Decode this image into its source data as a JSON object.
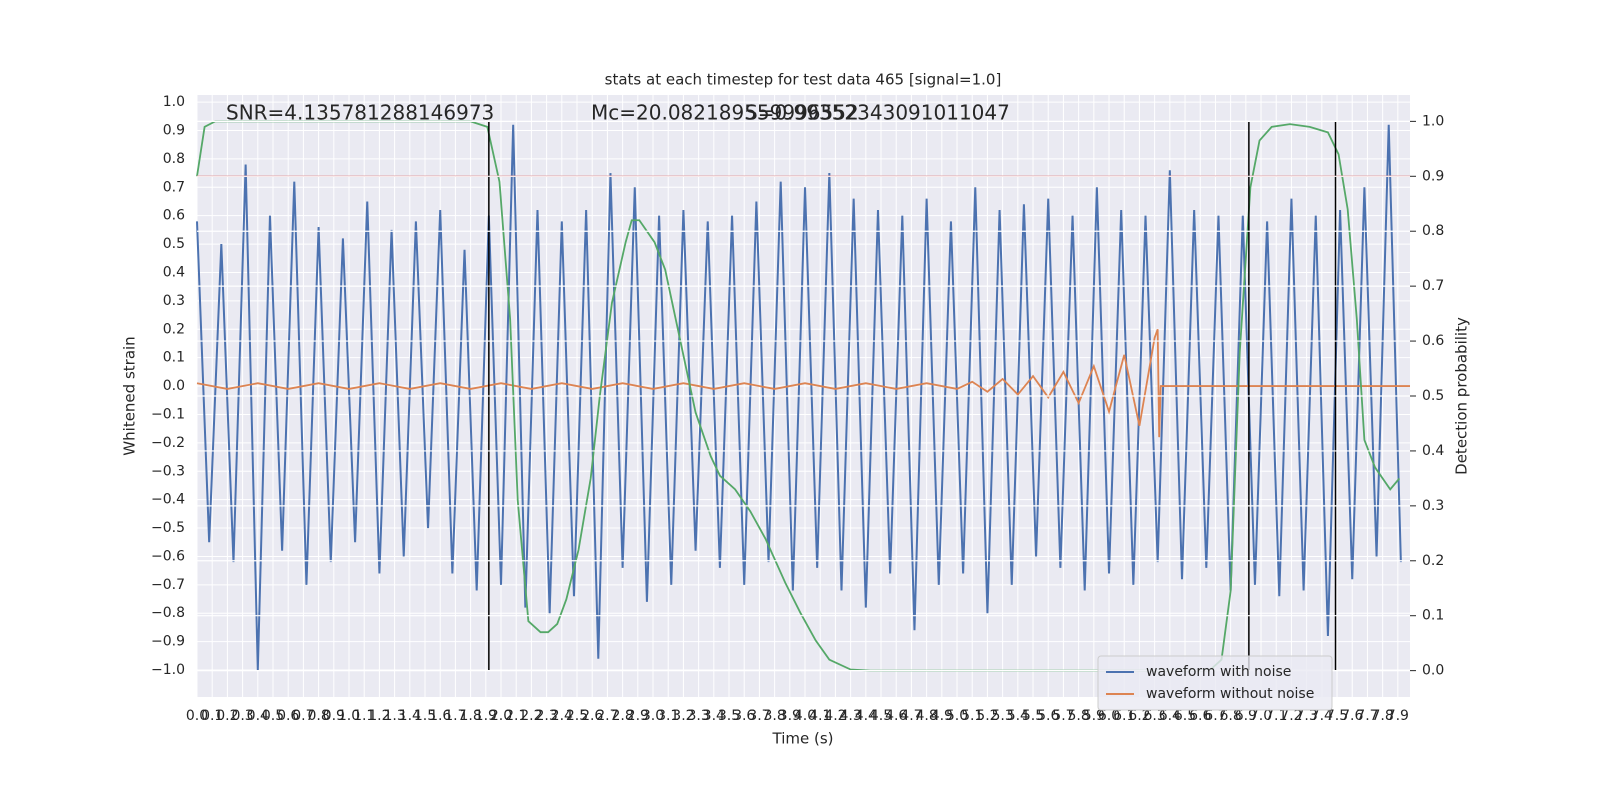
{
  "chart_data": {
    "type": "line",
    "title": "stats at each timestep for test data 465 [signal=1.0]",
    "xlabel": "Time (s)",
    "ylabel": "Whitened strain",
    "y2label": "Detection probability",
    "annotations": [
      "SNR=4.135781288146973",
      "Mc=20.082189559996552",
      "S=0.99352343091011047"
    ],
    "xlim": [
      0,
      7.98
    ],
    "ylim": [
      -1.095,
      1.025
    ],
    "y2lim": [
      -0.048,
      1.048
    ],
    "xticks": [
      {
        "value": 0,
        "label": "0.0"
      },
      0.1,
      0.2,
      0.3,
      0.4,
      0.5,
      0.6,
      0.7,
      0.8,
      0.9,
      {
        "value": 1,
        "label": "1.0"
      },
      1.1,
      1.2,
      1.3,
      1.4,
      1.5,
      1.6,
      1.7,
      1.8,
      1.9,
      {
        "value": 2,
        "label": "2.0"
      },
      2.1,
      2.2,
      2.3,
      2.4,
      2.5,
      2.6,
      2.7,
      2.8,
      2.9,
      {
        "value": 3,
        "label": "3.0"
      },
      3.1,
      3.2,
      3.3,
      3.4,
      3.5,
      3.6,
      3.7,
      3.8,
      3.9,
      {
        "value": 4,
        "label": "4.0"
      },
      4.1,
      4.2,
      4.3,
      4.4,
      4.5,
      4.6,
      4.7,
      4.8,
      4.9,
      {
        "value": 5,
        "label": "5.0"
      },
      5.1,
      5.2,
      5.3,
      5.4,
      5.5,
      5.6,
      5.7,
      5.8,
      5.9,
      {
        "value": 6,
        "label": "6.0"
      },
      6.1,
      6.2,
      6.3,
      6.4,
      6.5,
      6.6,
      6.7,
      6.8,
      6.9,
      {
        "value": 7,
        "label": "7.0"
      },
      7.1,
      7.2,
      7.3,
      7.4,
      7.5,
      7.6,
      7.7,
      7.8,
      7.9
    ],
    "yticks": [
      {
        "value": -1,
        "label": "−1.0"
      },
      {
        "value": -0.9,
        "label": "−0.9"
      },
      {
        "value": -0.8,
        "label": "−0.8"
      },
      {
        "value": -0.7,
        "label": "−0.7"
      },
      {
        "value": -0.6,
        "label": "−0.6"
      },
      {
        "value": -0.5,
        "label": "−0.5"
      },
      {
        "value": -0.4,
        "label": "−0.4"
      },
      {
        "value": -0.3,
        "label": "−0.3"
      },
      {
        "value": -0.2,
        "label": "−0.2"
      },
      {
        "value": -0.1,
        "label": "−0.1"
      },
      {
        "value": 0,
        "label": "0.0"
      },
      0.1,
      0.2,
      0.3,
      0.4,
      0.5,
      0.6,
      0.7,
      0.8,
      0.9,
      {
        "value": 1,
        "label": "1.0"
      }
    ],
    "y2ticks": [
      {
        "value": 0,
        "label": "0.0"
      },
      0.1,
      0.2,
      0.3,
      0.4,
      0.5,
      0.6,
      0.7,
      0.8,
      0.9,
      {
        "value": 1,
        "label": "1.0"
      }
    ],
    "grid": true,
    "legend": "lower right",
    "series": [
      {
        "name": "waveform with noise",
        "color": "#4c72b0",
        "x": [
          0,
          0.08,
          0.16,
          0.24,
          0.32,
          0.4,
          0.48,
          0.56,
          0.64,
          0.72,
          0.8,
          0.88,
          0.96,
          1.04,
          1.12,
          1.2,
          1.28,
          1.36,
          1.44,
          1.52,
          1.6,
          1.68,
          1.76,
          1.84,
          1.92,
          2,
          2.08,
          2.16,
          2.24,
          2.32,
          2.4,
          2.48,
          2.56,
          2.64,
          2.72,
          2.8,
          2.88,
          2.96,
          3.04,
          3.12,
          3.2,
          3.28,
          3.36,
          3.44,
          3.52,
          3.6,
          3.68,
          3.76,
          3.84,
          3.92,
          4,
          4.08,
          4.16,
          4.24,
          4.32,
          4.4,
          4.48,
          4.56,
          4.64,
          4.72,
          4.8,
          4.88,
          4.96,
          5.04,
          5.12,
          5.2,
          5.28,
          5.36,
          5.44,
          5.52,
          5.6,
          5.68,
          5.76,
          5.84,
          5.92,
          6,
          6.08,
          6.16,
          6.24,
          6.32,
          6.4,
          6.48,
          6.56,
          6.64,
          6.72,
          6.8,
          6.88,
          6.96,
          7.04,
          7.12,
          7.2,
          7.28,
          7.36,
          7.44,
          7.52,
          7.6,
          7.68,
          7.76,
          7.84,
          7.92
        ],
        "values": [
          0.58,
          -0.55,
          0.5,
          -0.62,
          0.78,
          -1.0,
          0.6,
          -0.58,
          0.72,
          -0.7,
          0.56,
          -0.62,
          0.52,
          -0.55,
          0.65,
          -0.66,
          0.55,
          -0.6,
          0.58,
          -0.5,
          0.62,
          -0.66,
          0.48,
          -0.72,
          0.6,
          -0.7,
          0.92,
          -0.78,
          0.62,
          -0.8,
          0.58,
          -0.74,
          0.62,
          -0.96,
          0.75,
          -0.64,
          0.7,
          -0.76,
          0.6,
          -0.7,
          0.62,
          -0.58,
          0.58,
          -0.64,
          0.6,
          -0.7,
          0.65,
          -0.62,
          0.72,
          -0.72,
          0.7,
          -0.64,
          0.75,
          -0.72,
          0.66,
          -0.78,
          0.62,
          -0.66,
          0.6,
          -0.86,
          0.66,
          -0.7,
          0.58,
          -0.66,
          0.7,
          -0.8,
          0.62,
          -0.7,
          0.64,
          -0.6,
          0.66,
          -0.64,
          0.6,
          -0.72,
          0.7,
          -0.66,
          0.62,
          -0.7,
          0.6,
          -0.62,
          0.76,
          -0.68,
          0.62,
          -0.64,
          0.6,
          -0.72,
          0.6,
          -0.7,
          0.58,
          -0.74,
          0.66,
          -0.72,
          0.6,
          -0.88,
          0.62,
          -0.68,
          0.7,
          -0.6,
          0.92,
          -0.62
        ]
      },
      {
        "name": "waveform without noise",
        "color": "#dd8452",
        "x": [
          0,
          0.2,
          0.4,
          0.6,
          0.8,
          1,
          1.2,
          1.4,
          1.6,
          1.8,
          2,
          2.2,
          2.4,
          2.6,
          2.8,
          3,
          3.2,
          3.4,
          3.6,
          3.8,
          4,
          4.2,
          4.4,
          4.6,
          4.8,
          5,
          5.1,
          5.2,
          5.3,
          5.4,
          5.5,
          5.6,
          5.7,
          5.8,
          5.9,
          6,
          6.1,
          6.2,
          6.3,
          6.32,
          6.33,
          6.34,
          7.98
        ],
        "values": [
          0.01,
          -0.01,
          0.01,
          -0.01,
          0.01,
          -0.01,
          0.01,
          -0.01,
          0.01,
          -0.01,
          0.01,
          -0.01,
          0.01,
          -0.01,
          0.01,
          -0.01,
          0.01,
          -0.01,
          0.01,
          -0.01,
          0.01,
          -0.01,
          0.01,
          -0.01,
          0.01,
          -0.01,
          0.015,
          -0.02,
          0.025,
          -0.03,
          0.035,
          -0.04,
          0.05,
          -0.06,
          0.07,
          -0.09,
          0.11,
          -0.14,
          0.17,
          0.2,
          -0.18,
          0,
          0
        ]
      },
      {
        "color": "#55a868",
        "axis": "y2",
        "x": [
          0,
          0.05,
          0.12,
          1.8,
          1.91,
          1.99,
          2.06,
          2.11,
          2.18,
          2.26,
          2.31,
          2.37,
          2.43,
          2.51,
          2.59,
          2.65,
          2.73,
          2.82,
          2.86,
          2.91,
          3.01,
          3.08,
          3.18,
          3.28,
          3.38,
          3.44,
          3.54,
          3.64,
          3.74,
          3.87,
          3.97,
          4.07,
          4.16,
          4.3,
          4.43,
          6.66,
          6.74,
          6.8,
          6.86,
          6.93,
          6.99,
          7.07,
          7.19,
          7.32,
          7.44,
          7.51,
          7.57,
          7.63,
          7.68,
          7.75,
          7.85,
          7.91
        ],
        "values": [
          0.9,
          0.99,
          1.0,
          1.0,
          0.99,
          0.89,
          0.64,
          0.31,
          0.09,
          0.07,
          0.07,
          0.085,
          0.13,
          0.22,
          0.35,
          0.5,
          0.67,
          0.78,
          0.82,
          0.82,
          0.78,
          0.73,
          0.6,
          0.47,
          0.39,
          0.355,
          0.33,
          0.29,
          0.24,
          0.16,
          0.105,
          0.055,
          0.02,
          0.002,
          0.0,
          0.0,
          0.02,
          0.145,
          0.58,
          0.88,
          0.965,
          0.99,
          0.995,
          0.99,
          0.98,
          0.94,
          0.84,
          0.64,
          0.42,
          0.37,
          0.33,
          0.35
        ]
      }
    ],
    "threshold": {
      "value": 0.9,
      "color": "#c44e52",
      "axis": "y2"
    },
    "vlines": {
      "x": [
        1.92,
        6.92,
        7.49
      ],
      "color": "#000000"
    }
  }
}
